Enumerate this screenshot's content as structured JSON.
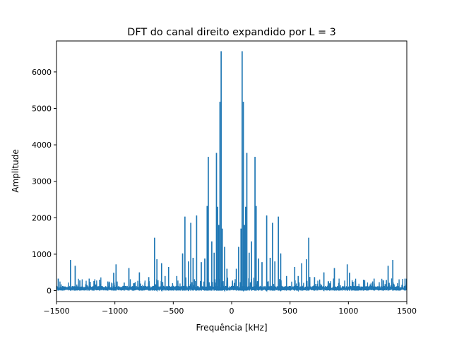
{
  "chart_data": {
    "type": "line",
    "title": "DFT do canal direito expandido por L = 3",
    "xlabel": "Frequência [kHz]",
    "ylabel": "Amplitude",
    "xlim": [
      -1500,
      1500
    ],
    "ylim": [
      -300,
      6850
    ],
    "xticks": [
      -1500,
      -1000,
      -500,
      0,
      500,
      1000,
      1500
    ],
    "xtick_labels": [
      "−1500",
      "−1000",
      "−500",
      "0",
      "500",
      "1000",
      "1500"
    ],
    "yticks": [
      0,
      1000,
      2000,
      3000,
      4000,
      5000,
      6000
    ],
    "ytick_labels": [
      "0",
      "1000",
      "2000",
      "3000",
      "4000",
      "5000",
      "6000"
    ],
    "grid": false,
    "series": [
      {
        "color": "#1f77b4",
        "peaks": [
          {
            "x": -1485,
            "y": 330
          },
          {
            "x": -1380,
            "y": 840
          },
          {
            "x": -1340,
            "y": 680
          },
          {
            "x": -1300,
            "y": 280
          },
          {
            "x": -1220,
            "y": 330
          },
          {
            "x": -1130,
            "y": 300
          },
          {
            "x": -1060,
            "y": 250
          },
          {
            "x": -1010,
            "y": 490
          },
          {
            "x": -990,
            "y": 720
          },
          {
            "x": -920,
            "y": 220
          },
          {
            "x": -880,
            "y": 620
          },
          {
            "x": -840,
            "y": 200
          },
          {
            "x": -790,
            "y": 500
          },
          {
            "x": -710,
            "y": 370
          },
          {
            "x": -660,
            "y": 1450
          },
          {
            "x": -640,
            "y": 860
          },
          {
            "x": -600,
            "y": 750
          },
          {
            "x": -570,
            "y": 400
          },
          {
            "x": -540,
            "y": 650
          },
          {
            "x": -470,
            "y": 400
          },
          {
            "x": -420,
            "y": 1020
          },
          {
            "x": -400,
            "y": 2030
          },
          {
            "x": -370,
            "y": 800
          },
          {
            "x": -350,
            "y": 1860
          },
          {
            "x": -330,
            "y": 900
          },
          {
            "x": -300,
            "y": 2060
          },
          {
            "x": -260,
            "y": 780
          },
          {
            "x": -230,
            "y": 880
          },
          {
            "x": -210,
            "y": 2320
          },
          {
            "x": -200,
            "y": 3670
          },
          {
            "x": -170,
            "y": 1350
          },
          {
            "x": -150,
            "y": 1040
          },
          {
            "x": -130,
            "y": 3780
          },
          {
            "x": -120,
            "y": 2300
          },
          {
            "x": -110,
            "y": 1800
          },
          {
            "x": -100,
            "y": 5180
          },
          {
            "x": -90,
            "y": 6570
          },
          {
            "x": -80,
            "y": 1700
          },
          {
            "x": -60,
            "y": 1200
          },
          {
            "x": -40,
            "y": 600
          },
          {
            "x": 40,
            "y": 600
          },
          {
            "x": 60,
            "y": 1200
          },
          {
            "x": 80,
            "y": 1700
          },
          {
            "x": 90,
            "y": 6570
          },
          {
            "x": 100,
            "y": 5180
          },
          {
            "x": 110,
            "y": 1800
          },
          {
            "x": 120,
            "y": 2300
          },
          {
            "x": 130,
            "y": 3780
          },
          {
            "x": 150,
            "y": 1040
          },
          {
            "x": 170,
            "y": 1350
          },
          {
            "x": 200,
            "y": 3670
          },
          {
            "x": 210,
            "y": 2320
          },
          {
            "x": 230,
            "y": 880
          },
          {
            "x": 260,
            "y": 780
          },
          {
            "x": 300,
            "y": 2060
          },
          {
            "x": 330,
            "y": 900
          },
          {
            "x": 350,
            "y": 1860
          },
          {
            "x": 370,
            "y": 800
          },
          {
            "x": 400,
            "y": 2030
          },
          {
            "x": 420,
            "y": 1020
          },
          {
            "x": 470,
            "y": 400
          },
          {
            "x": 540,
            "y": 650
          },
          {
            "x": 570,
            "y": 400
          },
          {
            "x": 600,
            "y": 750
          },
          {
            "x": 640,
            "y": 860
          },
          {
            "x": 660,
            "y": 1450
          },
          {
            "x": 710,
            "y": 370
          },
          {
            "x": 790,
            "y": 500
          },
          {
            "x": 840,
            "y": 200
          },
          {
            "x": 880,
            "y": 620
          },
          {
            "x": 920,
            "y": 220
          },
          {
            "x": 990,
            "y": 720
          },
          {
            "x": 1010,
            "y": 490
          },
          {
            "x": 1060,
            "y": 250
          },
          {
            "x": 1130,
            "y": 300
          },
          {
            "x": 1220,
            "y": 330
          },
          {
            "x": 1300,
            "y": 280
          },
          {
            "x": 1340,
            "y": 680
          },
          {
            "x": 1380,
            "y": 840
          },
          {
            "x": 1485,
            "y": 330
          }
        ]
      }
    ]
  }
}
